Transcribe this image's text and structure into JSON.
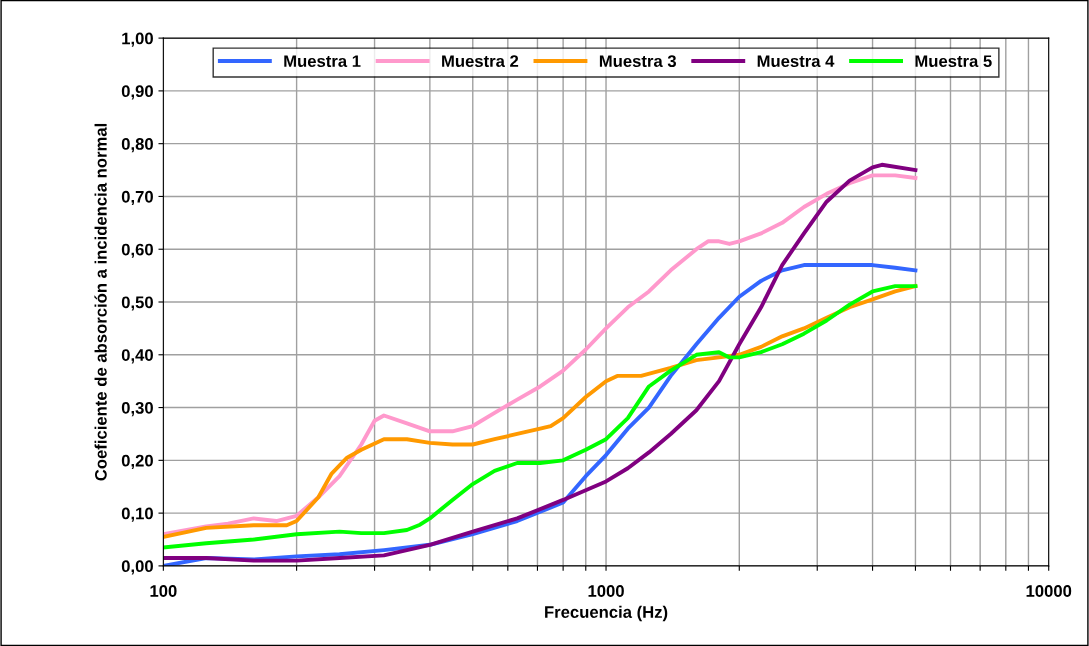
{
  "chart_data": {
    "type": "line",
    "xlabel": "Frecuencia (Hz)",
    "ylabel": "Coeficiente de absorción a incidencia normal",
    "log": "x",
    "grid": true,
    "legend": "top",
    "marker": "none",
    "line_style": "solid",
    "xlim": [
      100,
      10000
    ],
    "xticks": [
      100,
      {
        "value": 200,
        "label": null
      },
      {
        "value": 300,
        "label": null
      },
      {
        "value": 400,
        "label": null
      },
      {
        "value": 500,
        "label": null
      },
      {
        "value": 600,
        "label": null
      },
      {
        "value": 700,
        "label": null
      },
      {
        "value": 800,
        "label": null
      },
      {
        "value": 900,
        "label": null
      },
      1000,
      {
        "value": 2000,
        "label": null
      },
      {
        "value": 3000,
        "label": null
      },
      {
        "value": 4000,
        "label": null
      },
      {
        "value": 5000,
        "label": null
      },
      {
        "value": 6000,
        "label": null
      },
      {
        "value": 7000,
        "label": null
      },
      {
        "value": 8000,
        "label": null
      },
      {
        "value": 9000,
        "label": null
      },
      10000
    ],
    "ylim": [
      0,
      1
    ],
    "yticks": [
      {
        "value": 0,
        "label": "0,00"
      },
      {
        "value": 0.1,
        "label": "0,10"
      },
      {
        "value": 0.2,
        "label": "0,20"
      },
      {
        "value": 0.3,
        "label": "0,30"
      },
      {
        "value": 0.4,
        "label": "0,40"
      },
      {
        "value": 0.5,
        "label": "0,50"
      },
      {
        "value": 0.6,
        "label": "0,60"
      },
      {
        "value": 0.7,
        "label": "0,70"
      },
      {
        "value": 0.8,
        "label": "0,80"
      },
      {
        "value": 0.9,
        "label": "0,90"
      },
      {
        "value": 1,
        "label": "1,00"
      }
    ],
    "series": [
      {
        "name": "Muestra 1",
        "color": "#3366ff",
        "x": [
          100,
          125,
          160,
          200,
          250,
          315,
          400,
          500,
          630,
          800,
          900,
          1000,
          1120,
          1250,
          1400,
          1600,
          1800,
          2000,
          2240,
          2500,
          2800,
          3150,
          4000,
          4500,
          5000
        ],
        "values": [
          0.0,
          0.015,
          0.012,
          0.018,
          0.022,
          0.03,
          0.04,
          0.06,
          0.085,
          0.12,
          0.17,
          0.21,
          0.26,
          0.3,
          0.36,
          0.42,
          0.47,
          0.51,
          0.54,
          0.56,
          0.57,
          0.57,
          0.57,
          0.565,
          0.56
        ]
      },
      {
        "name": "Muestra 2",
        "color": "#ff99cc",
        "x": [
          100,
          125,
          140,
          160,
          180,
          200,
          224,
          250,
          280,
          300,
          315,
          355,
          400,
          450,
          500,
          560,
          630,
          710,
          800,
          900,
          1000,
          1120,
          1250,
          1400,
          1600,
          1700,
          1800,
          1900,
          2000,
          2240,
          2500,
          2800,
          3150,
          3550,
          4000,
          4500,
          5000
        ],
        "values": [
          0.06,
          0.075,
          0.08,
          0.09,
          0.085,
          0.095,
          0.13,
          0.17,
          0.23,
          0.275,
          0.285,
          0.27,
          0.255,
          0.255,
          0.265,
          0.29,
          0.315,
          0.34,
          0.37,
          0.41,
          0.45,
          0.49,
          0.52,
          0.56,
          0.6,
          0.615,
          0.615,
          0.61,
          0.615,
          0.63,
          0.65,
          0.68,
          0.705,
          0.725,
          0.74,
          0.74,
          0.735
        ]
      },
      {
        "name": "Muestra 3",
        "color": "#ff9900",
        "x": [
          100,
          125,
          160,
          190,
          200,
          224,
          240,
          260,
          280,
          315,
          355,
          400,
          450,
          500,
          560,
          630,
          710,
          750,
          800,
          900,
          1000,
          1060,
          1200,
          1400,
          1600,
          1800,
          2000,
          2240,
          2500,
          2800,
          3150,
          3550,
          4000,
          4500,
          5000
        ],
        "values": [
          0.055,
          0.072,
          0.077,
          0.077,
          0.085,
          0.13,
          0.175,
          0.205,
          0.22,
          0.24,
          0.24,
          0.233,
          0.23,
          0.23,
          0.24,
          0.25,
          0.26,
          0.265,
          0.28,
          0.32,
          0.35,
          0.36,
          0.36,
          0.375,
          0.39,
          0.395,
          0.4,
          0.415,
          0.435,
          0.45,
          0.47,
          0.49,
          0.505,
          0.52,
          0.53
        ]
      },
      {
        "name": "Muestra 4",
        "color": "#800080",
        "x": [
          100,
          125,
          160,
          200,
          250,
          315,
          400,
          500,
          630,
          800,
          1000,
          1120,
          1250,
          1400,
          1600,
          1800,
          2000,
          2240,
          2500,
          2800,
          3150,
          3550,
          4000,
          4200,
          5000
        ],
        "values": [
          0.015,
          0.015,
          0.01,
          0.01,
          0.015,
          0.02,
          0.04,
          0.065,
          0.09,
          0.125,
          0.16,
          0.185,
          0.215,
          0.25,
          0.295,
          0.35,
          0.42,
          0.49,
          0.57,
          0.63,
          0.69,
          0.73,
          0.755,
          0.76,
          0.75
        ]
      },
      {
        "name": "Muestra 5",
        "color": "#00ff00",
        "x": [
          100,
          125,
          160,
          200,
          250,
          280,
          315,
          355,
          380,
          400,
          450,
          500,
          560,
          630,
          710,
          800,
          900,
          1000,
          1120,
          1250,
          1400,
          1600,
          1800,
          1900,
          2000,
          2240,
          2500,
          2800,
          3150,
          3550,
          4000,
          4500,
          5000
        ],
        "values": [
          0.035,
          0.043,
          0.05,
          0.06,
          0.065,
          0.062,
          0.062,
          0.068,
          0.078,
          0.09,
          0.125,
          0.155,
          0.18,
          0.195,
          0.195,
          0.2,
          0.22,
          0.24,
          0.28,
          0.34,
          0.37,
          0.4,
          0.405,
          0.395,
          0.395,
          0.405,
          0.42,
          0.44,
          0.465,
          0.495,
          0.52,
          0.53,
          0.53
        ]
      }
    ]
  }
}
